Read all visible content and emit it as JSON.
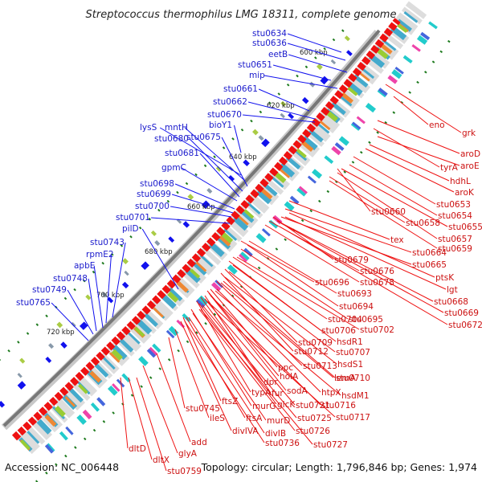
{
  "title": "Streptococcus thermophilus LMG 18311, complete genome",
  "footer": {
    "accession": "Accession: NC_006448",
    "summary": "Topology: circular; Length: 1,796,846 bp; Genes: 1,974"
  },
  "map": {
    "tick_labels": [
      "600 kbp",
      "620 kbp",
      "640 kbp",
      "660 kbp",
      "680 kbp",
      "700 kbp",
      "720 kbp"
    ],
    "reverse_strand_genes": [
      "stu0634",
      "stu0636",
      "eetB",
      "stu0651",
      "mip",
      "stu0661",
      "stu0662",
      "stu0670",
      "bioY1",
      "lysS",
      "mntH",
      "stu0675",
      "stu0680",
      "stu0681",
      "gpmC",
      "stu0698",
      "stu0699",
      "stu0700",
      "stu0701",
      "pilD",
      "stu0743",
      "rpmE2",
      "apbE",
      "stu0748",
      "stu0749",
      "stu0765"
    ],
    "forward_strand_genes": [
      "eno",
      "grk",
      "aroD",
      "tyrA",
      "aroE",
      "hdhL",
      "aroK",
      "stu0653",
      "stu0660",
      "stu0654",
      "stu0658",
      "stu0655",
      "stu0657",
      "stu0659",
      "tex",
      "stu0664",
      "stu0679",
      "stu0665",
      "stu0676",
      "ptsK",
      "stu0678",
      "lgt",
      "stu0696",
      "stu0668",
      "stu0693",
      "stu0669",
      "stu0694",
      "stu0672",
      "stu0695",
      "stu0704",
      "stu0706",
      "stu0702",
      "stu0709",
      "hsdR1",
      "stu0712",
      "stu0707",
      "stu0713",
      "hsdS1",
      "ppc",
      "lemA",
      "stu0710",
      "holA",
      "dpr",
      "fur",
      "sodA",
      "htpX",
      "typA",
      "hsdM1",
      "murG",
      "glcK",
      "stu0721",
      "stu0716",
      "ftsZ",
      "stu0725",
      "stu0717",
      "stu0745",
      "ftsA",
      "murD",
      "ileS",
      "divIVA",
      "divIB",
      "stu0726",
      "stu0736",
      "stu0727",
      "add",
      "glyA",
      "dltD",
      "dltX",
      "stu0759"
    ]
  },
  "colors": {
    "forward_label": "#cc1111",
    "reverse_label": "#1a1acc",
    "backbone": "#8a8a8a",
    "forward_gene": "#ee1111",
    "reverse_gene": "#1111ee",
    "tick": "#1d7a1d"
  }
}
